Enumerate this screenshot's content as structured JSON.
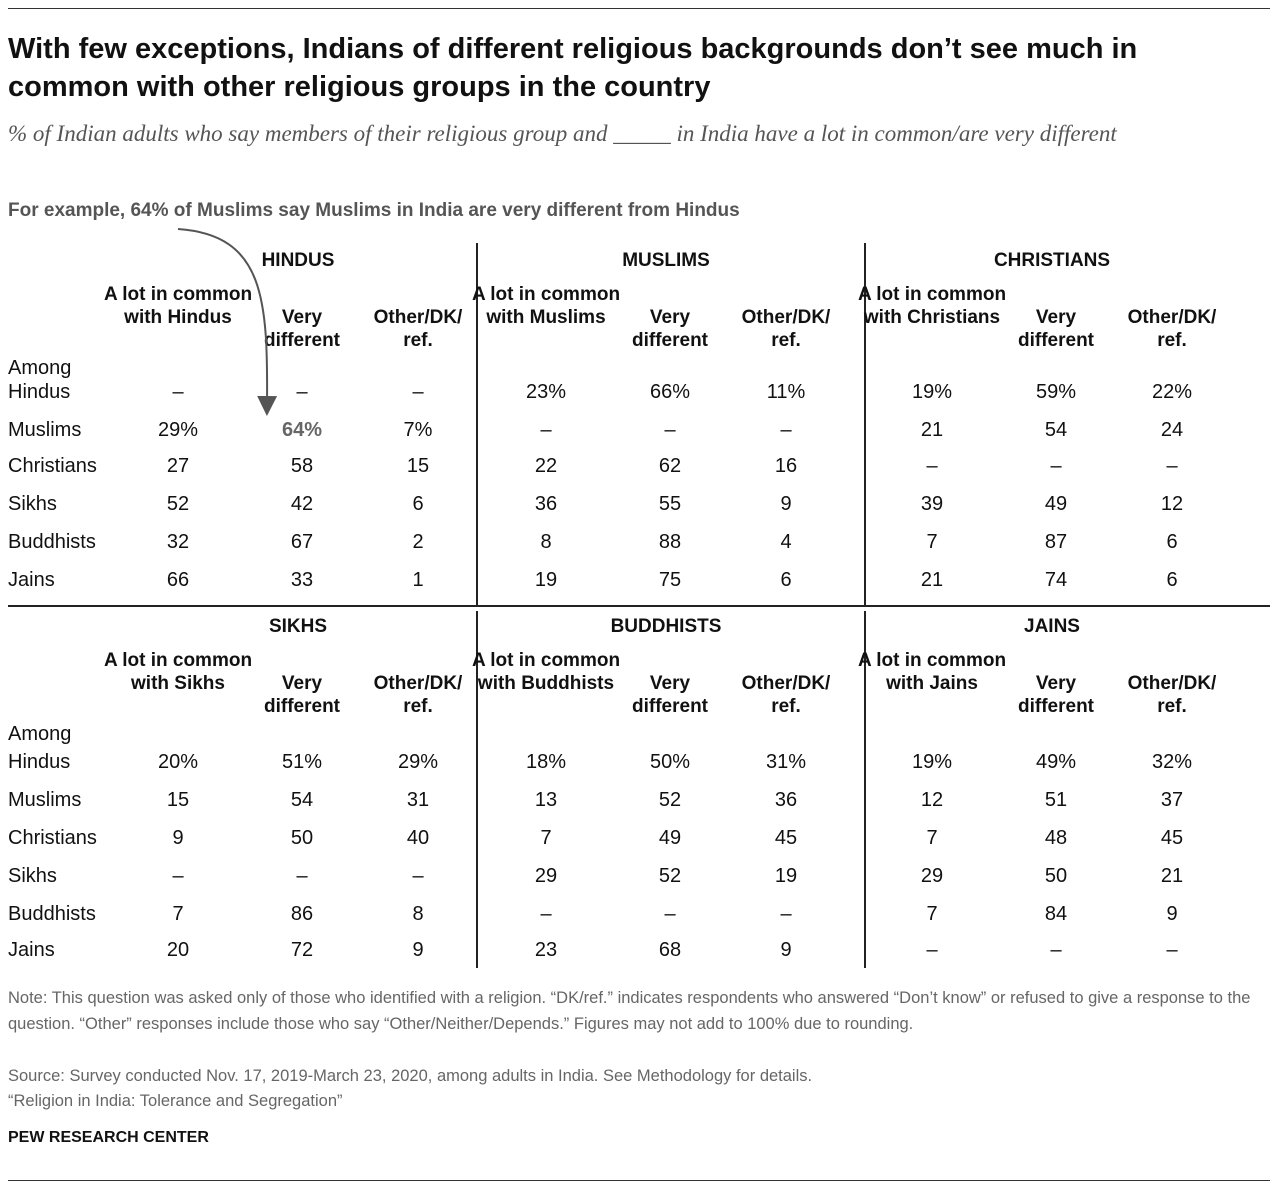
{
  "title": "With few exceptions, Indians of different religious backgrounds don’t see much in common with other religious groups in the country",
  "subtitle": "% of Indian adults who say members of their religious group and _____ in India have a lot in common/are very different",
  "example_note": "For example, 64% of Muslims say Muslims in India are very different from Hindus",
  "colors": {
    "text": "#111111",
    "muted": "#666666",
    "rule": "#222222",
    "arrow": "#555555"
  },
  "chart_data": {
    "type": "table",
    "row_label_prefix": "Among",
    "row_labels": [
      "Hindus",
      "Muslims",
      "Christians",
      "Sikhs",
      "Buddhists",
      "Jains"
    ],
    "highlight": {
      "panel": 0,
      "row": 1,
      "col": 1
    },
    "panels": [
      {
        "group": "HINDUS",
        "headers": [
          "A lot in common with Hindus",
          "Very different",
          "Other/DK/ ref."
        ],
        "rows": [
          [
            "–",
            "–",
            "–"
          ],
          [
            "29%",
            "64%",
            "7%"
          ],
          [
            "27",
            "58",
            "15"
          ],
          [
            "52",
            "42",
            "6"
          ],
          [
            "32",
            "67",
            "2"
          ],
          [
            "66",
            "33",
            "1"
          ]
        ]
      },
      {
        "group": "MUSLIMS",
        "headers": [
          "A lot in common with Muslims",
          "Very different",
          "Other/DK/ ref."
        ],
        "rows": [
          [
            "23%",
            "66%",
            "11%"
          ],
          [
            "–",
            "–",
            "–"
          ],
          [
            "22",
            "62",
            "16"
          ],
          [
            "36",
            "55",
            "9"
          ],
          [
            "8",
            "88",
            "4"
          ],
          [
            "19",
            "75",
            "6"
          ]
        ]
      },
      {
        "group": "CHRISTIANS",
        "headers": [
          "A lot in common with Christians",
          "Very different",
          "Other/DK/ ref."
        ],
        "rows": [
          [
            "19%",
            "59%",
            "22%"
          ],
          [
            "21",
            "54",
            "24"
          ],
          [
            "–",
            "–",
            "–"
          ],
          [
            "39",
            "49",
            "12"
          ],
          [
            "7",
            "87",
            "6"
          ],
          [
            "21",
            "74",
            "6"
          ]
        ]
      },
      {
        "group": "SIKHS",
        "headers": [
          "A lot in common with Sikhs",
          "Very different",
          "Other/DK/ ref."
        ],
        "rows": [
          [
            "20%",
            "51%",
            "29%"
          ],
          [
            "15",
            "54",
            "31"
          ],
          [
            "9",
            "50",
            "40"
          ],
          [
            "–",
            "–",
            "–"
          ],
          [
            "7",
            "86",
            "8"
          ],
          [
            "20",
            "72",
            "9"
          ]
        ]
      },
      {
        "group": "BUDDHISTS",
        "headers": [
          "A lot in common with Buddhists",
          "Very different",
          "Other/DK/ ref."
        ],
        "rows": [
          [
            "18%",
            "50%",
            "31%"
          ],
          [
            "13",
            "52",
            "36"
          ],
          [
            "7",
            "49",
            "45"
          ],
          [
            "29",
            "52",
            "19"
          ],
          [
            "–",
            "–",
            "–"
          ],
          [
            "23",
            "68",
            "9"
          ]
        ]
      },
      {
        "group": "JAINS",
        "headers": [
          "A lot in common with Jains",
          "Very different",
          "Other/DK/ ref."
        ],
        "rows": [
          [
            "19%",
            "49%",
            "32%"
          ],
          [
            "12",
            "51",
            "37"
          ],
          [
            "7",
            "48",
            "45"
          ],
          [
            "29",
            "50",
            "21"
          ],
          [
            "7",
            "84",
            "9"
          ],
          [
            "–",
            "–",
            "–"
          ]
        ]
      }
    ]
  },
  "notes": {
    "note": "Note: This question was asked only of those who identified with a religion. “DK/ref.” indicates respondents who answered “Don’t know” or refused to give a response to the question. “Other” responses include those who say “Other/Neither/Depends.” Figures may not add to 100% due to rounding.",
    "source": "Source: Survey conducted Nov. 17, 2019-March 23, 2020, among adults in India. See Methodology for details.",
    "report": "“Religion in India: Tolerance and Segregation”"
  },
  "footer": "PEW RESEARCH CENTER"
}
